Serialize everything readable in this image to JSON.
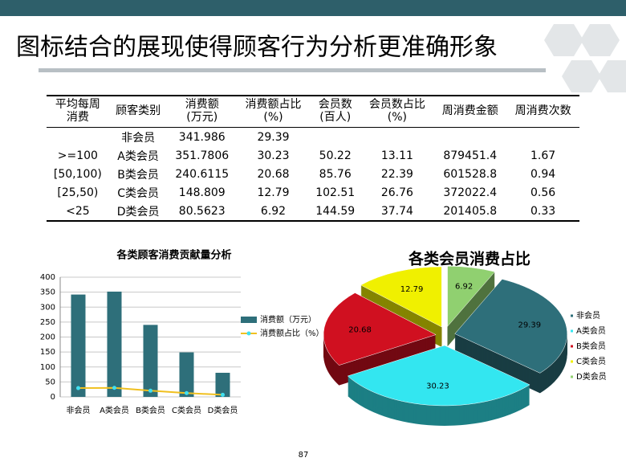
{
  "title": "图标结合的展现使得顾客行为分析更准确形象",
  "page_number": "87",
  "table": {
    "header": [
      "平均每周\n消费",
      "顾客类别",
      "消费额\n(万元)",
      "消费额占比\n(%)",
      "会员数\n(百人)",
      "会员数占比\n(%)",
      "周消费金额",
      "周消费次数"
    ],
    "rows": [
      [
        null,
        "非会员",
        "341.986",
        "29.39",
        null,
        null,
        null,
        null
      ],
      [
        ">=100",
        "A类会员",
        "351.7806",
        "30.23",
        "50.22",
        "13.11",
        "879451.4",
        "1.67"
      ],
      [
        "[50,100)",
        "B类会员",
        "240.6115",
        "20.68",
        "85.76",
        "22.39",
        "601528.8",
        "0.94"
      ],
      [
        "[25,50)",
        "C类会员",
        "148.809",
        "12.79",
        "102.51",
        "26.76",
        "372022.4",
        "0.56"
      ],
      [
        "<25",
        "D类会员",
        "80.5623",
        "6.92",
        "144.59",
        "37.74",
        "201405.8",
        "0.33"
      ]
    ]
  },
  "chart_data": [
    {
      "type": "bar",
      "title": "各类顾客消费贡献量分析",
      "categories": [
        "非会员",
        "A类会员",
        "B类会员",
        "C类会员",
        "D类会员"
      ],
      "series": [
        {
          "name": "消费额（万元）",
          "type": "bar",
          "color": "#2e6f7a",
          "values": [
            341.986,
            351.7806,
            240.6115,
            148.809,
            80.5623
          ]
        },
        {
          "name": "消费额占比（%）",
          "type": "line",
          "color": "#f0c020",
          "values": [
            29.39,
            30.23,
            20.68,
            12.79,
            6.92
          ]
        }
      ],
      "ylim": [
        0,
        400
      ],
      "yticks": [
        0,
        50,
        100,
        150,
        200,
        250,
        300,
        350,
        400
      ],
      "grid": true,
      "legend": "right"
    },
    {
      "type": "pie",
      "title": "各类会员消费占比",
      "categories": [
        "非会员",
        "A类会员",
        "B类会员",
        "C类会员",
        "D类会员"
      ],
      "values": [
        29.39,
        30.23,
        20.68,
        12.79,
        6.92
      ],
      "colors": [
        "#2e6f7a",
        "#33e6f0",
        "#d01020",
        "#f0f000",
        "#90d070"
      ],
      "legend": "right"
    }
  ]
}
